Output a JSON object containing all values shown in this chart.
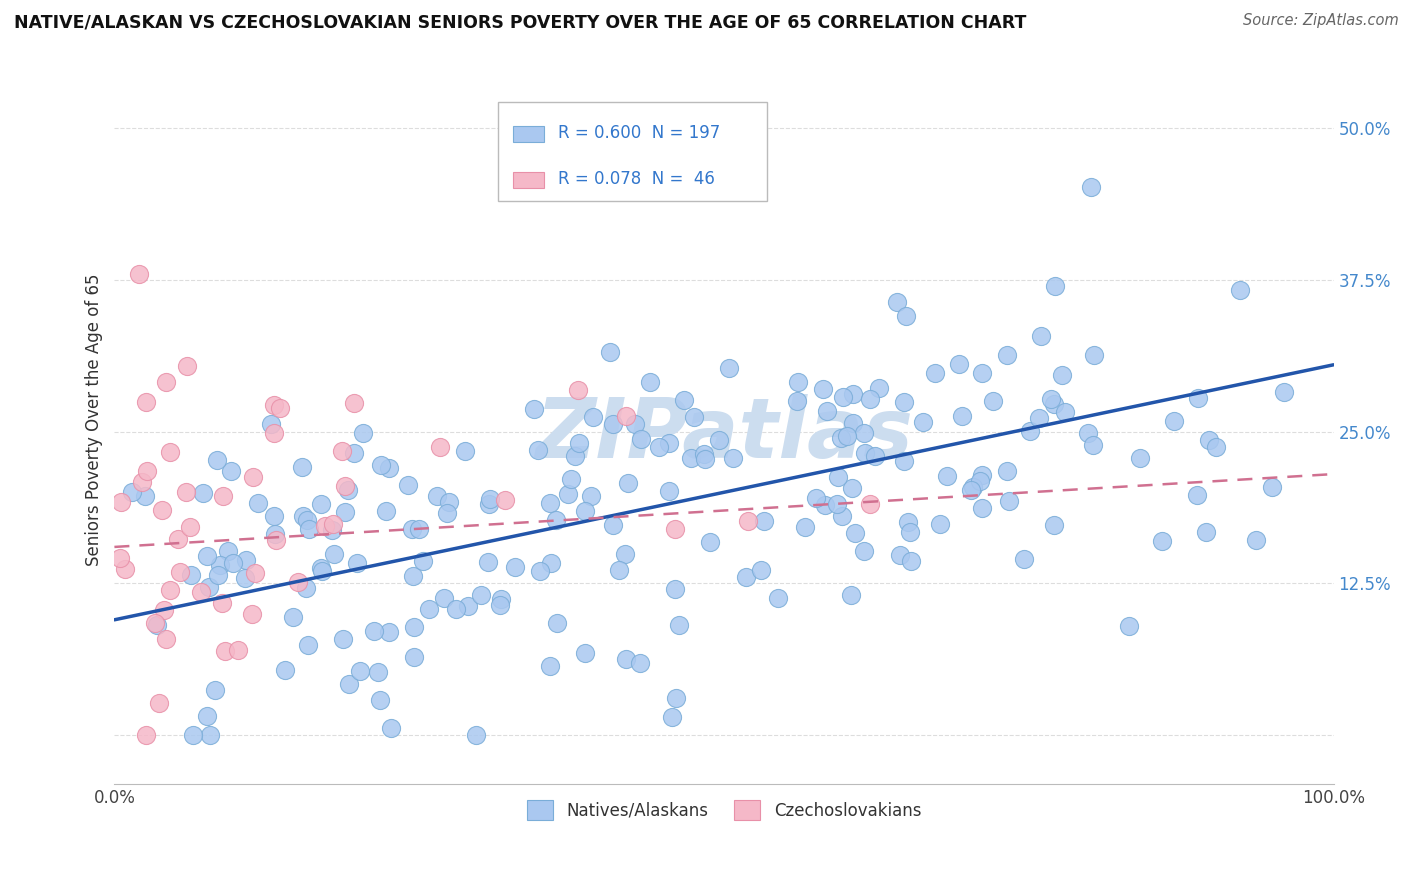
{
  "title": "NATIVE/ALASKAN VS CZECHOSLOVAKIAN SENIORS POVERTY OVER THE AGE OF 65 CORRELATION CHART",
  "source": "Source: ZipAtlas.com",
  "ylabel": "Seniors Poverty Over the Age of 65",
  "xlim": [
    0.0,
    1.0
  ],
  "ylim": [
    -0.04,
    0.56
  ],
  "yticks": [
    0.0,
    0.125,
    0.25,
    0.375,
    0.5
  ],
  "yticklabels": [
    "",
    "12.5%",
    "25.0%",
    "37.5%",
    "50.0%"
  ],
  "xticks": [
    0.0,
    1.0
  ],
  "xticklabels": [
    "0.0%",
    "100.0%"
  ],
  "native_R": 0.6,
  "native_N": 197,
  "czech_R": 0.078,
  "czech_N": 46,
  "native_color": "#aac8f0",
  "native_edge_color": "#7aadd8",
  "czech_color": "#f5b8c8",
  "czech_edge_color": "#e890a8",
  "native_line_color": "#2255aa",
  "czech_line_color": "#d07090",
  "legend_text_color": "#3377cc",
  "ytick_color": "#4488cc",
  "watermark_color": "#ccddef",
  "background_color": "#ffffff",
  "grid_color": "#dddddd",
  "native_line_y0": 0.095,
  "native_line_y1": 0.305,
  "czech_line_y0": 0.155,
  "czech_line_y1": 0.215
}
